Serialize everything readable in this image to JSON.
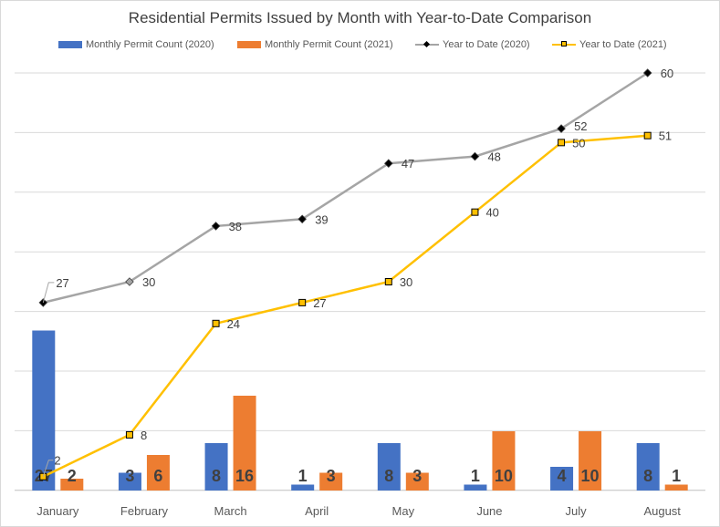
{
  "chart_data": {
    "type": "bar",
    "title": "Residential Permits Issued by Month with Year-to-Date Comparison",
    "categories": [
      "January",
      "February",
      "March",
      "April",
      "May",
      "June",
      "July",
      "August"
    ],
    "series": [
      {
        "name": "Monthly Permit Count (2020)",
        "kind": "bar",
        "color": "#4472C4",
        "values": [
          27,
          3,
          8,
          1,
          8,
          1,
          4,
          8
        ]
      },
      {
        "name": "Monthly Permit Count (2021)",
        "kind": "bar",
        "color": "#ED7D31",
        "values": [
          2,
          6,
          16,
          3,
          3,
          10,
          10,
          1
        ]
      },
      {
        "name": "Year to Date (2020)",
        "kind": "line",
        "color": "#A5A5A5",
        "marker": "diamond",
        "values": [
          27,
          30,
          38,
          39,
          47,
          48,
          52,
          60
        ]
      },
      {
        "name": "Year to Date (2021)",
        "kind": "line",
        "color": "#FFC000",
        "marker": "square",
        "values": [
          2,
          8,
          24,
          27,
          30,
          40,
          50,
          51
        ]
      }
    ],
    "ylim": [
      0,
      60
    ],
    "grid": true,
    "legend": "top"
  }
}
